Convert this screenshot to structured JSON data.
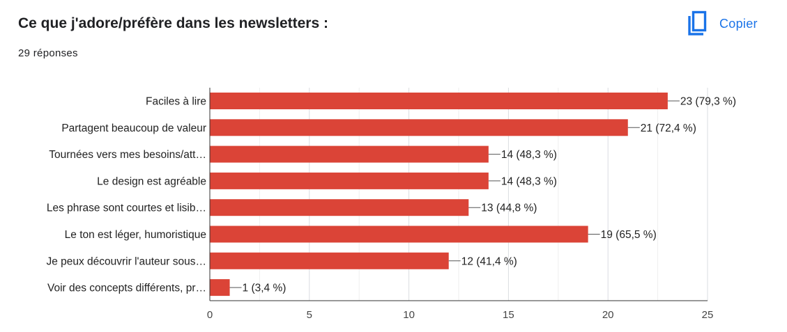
{
  "header": {
    "title": "Ce que j'adore/préfère dans les newsletters :",
    "responses": "29 réponses",
    "copy_label": "Copier",
    "copy_icon": "copy-icon"
  },
  "colors": {
    "bar": "#db4437",
    "accent": "#1a73e8"
  },
  "chart_data": {
    "type": "bar",
    "orientation": "horizontal",
    "categories": [
      "Faciles à lire",
      "Partagent beaucoup de valeur",
      "Tournées vers mes besoins/att…",
      "Le design est agréable",
      "Les phrase sont courtes et lisib…",
      "Le ton est léger, humoristique",
      "Je peux découvrir l'auteur sous…",
      "Voir des concepts différents, pr…"
    ],
    "values": [
      23,
      21,
      14,
      14,
      13,
      19,
      12,
      1
    ],
    "value_labels": [
      "23 (79,3 %)",
      "21 (72,4 %)",
      "14 (48,3 %)",
      "14 (48,3 %)",
      "13 (44,8 %)",
      "19 (65,5 %)",
      "12 (41,4 %)",
      "1 (3,4 %)"
    ],
    "xlim": [
      0,
      25
    ],
    "xticks": [
      0,
      5,
      10,
      15,
      20,
      25
    ],
    "grid": true
  }
}
